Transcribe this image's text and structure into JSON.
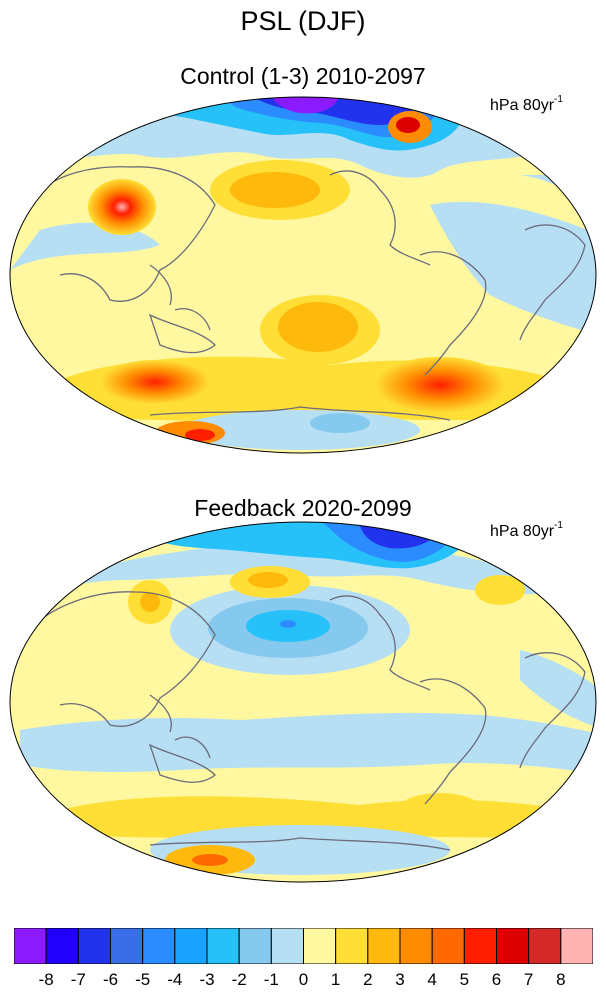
{
  "figure": {
    "title": "PSL (DJF)"
  },
  "panels": [
    {
      "title": "Control (1-3) 2010-2097",
      "units": "hPa 80yr",
      "units_exp": "-1",
      "features": [
        {
          "region": "arctic",
          "color": "#1e1eff"
        },
        {
          "region": "north-atlantic",
          "color": "#ff6a00"
        },
        {
          "region": "siberia",
          "color": "#ffadad"
        },
        {
          "region": "southern-ocean",
          "color": "#ff8c00"
        }
      ]
    },
    {
      "title": "Feedback 2020-2099",
      "units": "hPa 80yr",
      "units_exp": "-1",
      "features": [
        {
          "region": "arctic",
          "color": "#1e90ff"
        },
        {
          "region": "north-pacific",
          "color": "#1e90ff"
        },
        {
          "region": "antarctic",
          "color": "#ff6a00"
        }
      ]
    }
  ],
  "colorbar": {
    "ticks": [
      "-8",
      "-7",
      "-6",
      "-5",
      "-4",
      "-3",
      "-2",
      "-1",
      "0",
      "1",
      "2",
      "3",
      "4",
      "5",
      "6",
      "7",
      "8"
    ],
    "colors": [
      "#8b1aff",
      "#2200ff",
      "#2233ee",
      "#3a6ee8",
      "#2b8cff",
      "#19a3ff",
      "#27c1fa",
      "#86c9ee",
      "#b7dff4",
      "#fff8a0",
      "#ffdf35",
      "#ffb80c",
      "#ff8c00",
      "#ff6a00",
      "#ff1f00",
      "#dd0000",
      "#d42a2a",
      "#ffb3b3"
    ]
  }
}
